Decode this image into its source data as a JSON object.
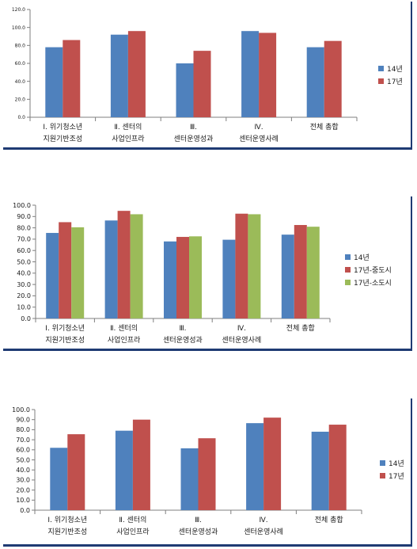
{
  "colors": {
    "s14": "#4f81bd",
    "s17": "#c0504d",
    "s17small": "#9bbb59",
    "frame": "#1f3b73",
    "grid": "#bfbfbf"
  },
  "chart_data": [
    {
      "type": "bar",
      "categories": [
        [
          "Ⅰ. 위기청소년",
          "지원기반조성"
        ],
        [
          "Ⅱ. 센터의",
          "사업인프라"
        ],
        [
          "Ⅲ.",
          "센터운영성과"
        ],
        [
          "Ⅳ.",
          "센터운영사례"
        ],
        [
          "전체 총합"
        ]
      ],
      "series": [
        {
          "name": "14년",
          "values": [
            78,
            92,
            60,
            96,
            78
          ]
        },
        {
          "name": "17년",
          "values": [
            86,
            96,
            74,
            94,
            85
          ]
        }
      ],
      "ylim": [
        0,
        120
      ],
      "yticks": [
        "0.0",
        "20.0",
        "40.0",
        "60.0",
        "80.0",
        "100.0",
        "120.0"
      ],
      "grid": false,
      "legend": "right"
    },
    {
      "type": "bar",
      "categories": [
        [
          "Ⅰ. 위기청소년",
          "지원기반조성"
        ],
        [
          "Ⅱ. 센터의",
          "사업인프라"
        ],
        [
          "Ⅲ.",
          "센터운영성과"
        ],
        [
          "Ⅳ.",
          "센터운영사례"
        ],
        [
          "전체 총합"
        ]
      ],
      "series": [
        {
          "name": "14년",
          "values": [
            75.5,
            86.5,
            68,
            69.5,
            74
          ]
        },
        {
          "name": "17년-중도시",
          "values": [
            85,
            95,
            72,
            92.5,
            82.5
          ]
        },
        {
          "name": "17년-소도시",
          "values": [
            80.5,
            92,
            72.5,
            92,
            81
          ]
        }
      ],
      "ylim": [
        0,
        100
      ],
      "yticks": [
        "0.0",
        "10.0",
        "20.0",
        "30.0",
        "40.0",
        "50.0",
        "60.0",
        "70.0",
        "80.0",
        "90.0",
        "100.0"
      ],
      "grid": false,
      "legend": "right"
    },
    {
      "type": "bar",
      "categories": [
        [
          "Ⅰ. 위기청소년",
          "지원기반조성"
        ],
        [
          "Ⅱ. 센터의",
          "사업인프라"
        ],
        [
          "Ⅲ.",
          "센터운영성과"
        ],
        [
          "Ⅳ.",
          "센터운영사례"
        ],
        [
          "전체 총합"
        ]
      ],
      "series": [
        {
          "name": "14년",
          "values": [
            62,
            79,
            61.5,
            86.5,
            78
          ]
        },
        {
          "name": "17년",
          "values": [
            75.5,
            90,
            71.5,
            92,
            85
          ]
        }
      ],
      "ylim": [
        0,
        100
      ],
      "yticks": [
        "0.0",
        "10.0",
        "20.0",
        "30.0",
        "40.0",
        "50.0",
        "60.0",
        "70.0",
        "80.0",
        "90.0",
        "100.0"
      ],
      "grid": false,
      "legend": "right"
    }
  ]
}
